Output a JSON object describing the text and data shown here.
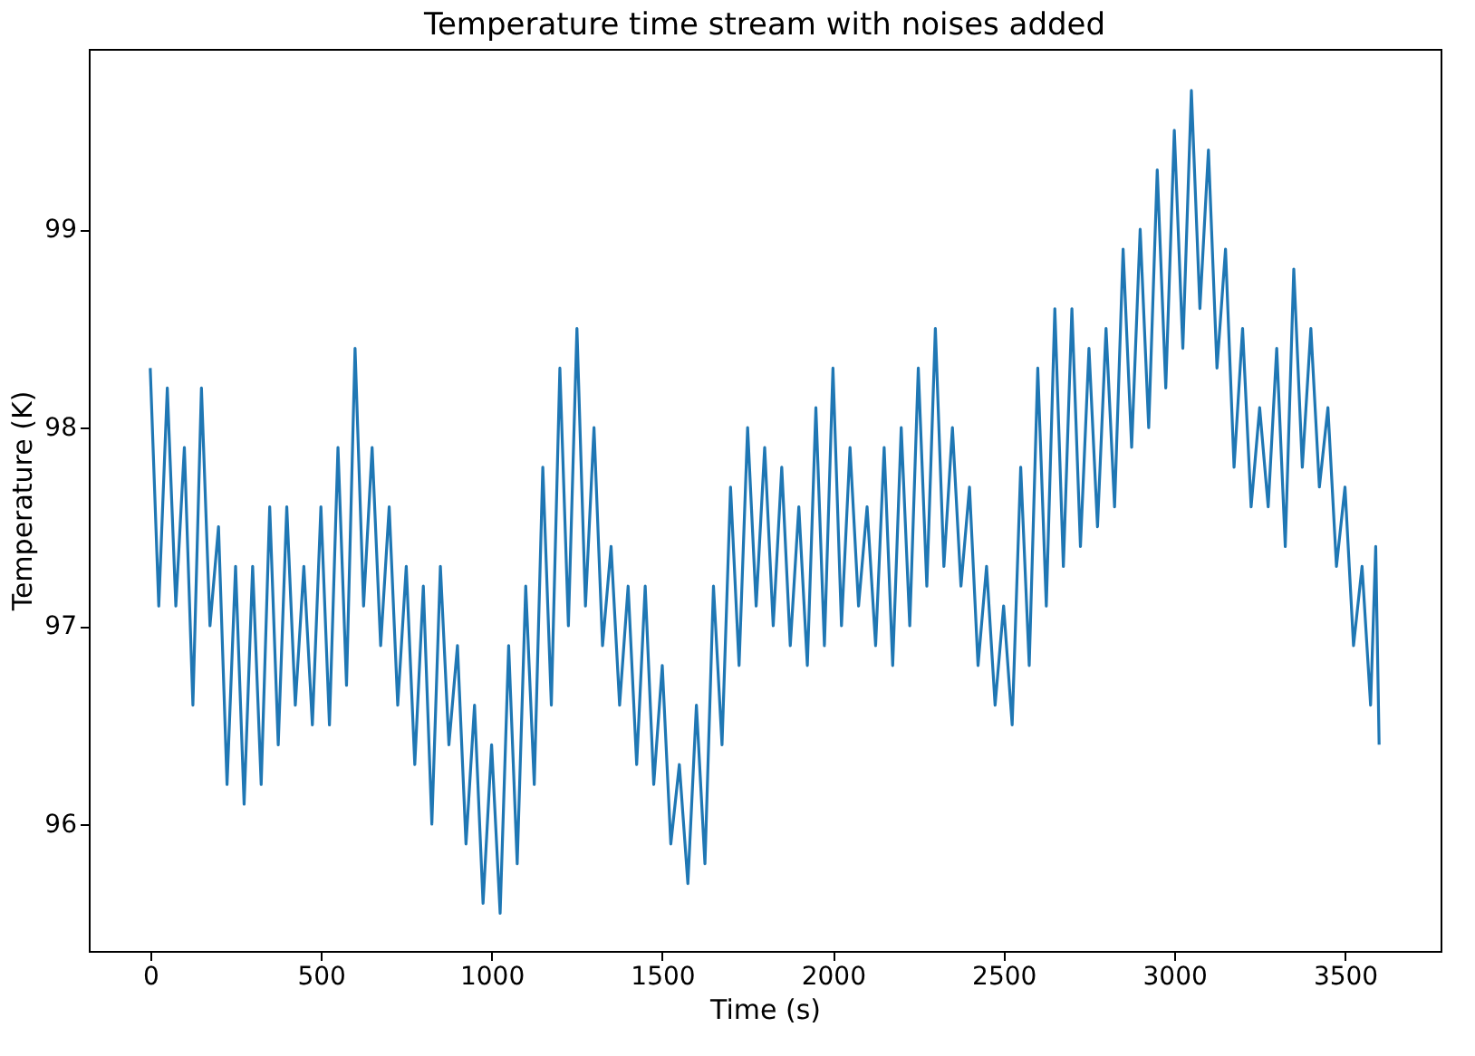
{
  "chart_data": {
    "type": "line",
    "title": "Temperature time stream with noises added",
    "xlabel": "Time (s)",
    "ylabel": "Temperature (K)",
    "x": [
      0,
      25,
      50,
      75,
      100,
      125,
      150,
      175,
      200,
      225,
      250,
      275,
      300,
      325,
      350,
      375,
      400,
      425,
      450,
      475,
      500,
      525,
      550,
      575,
      600,
      625,
      650,
      675,
      700,
      725,
      750,
      775,
      800,
      825,
      850,
      875,
      900,
      925,
      950,
      975,
      1000,
      1025,
      1050,
      1075,
      1100,
      1125,
      1150,
      1175,
      1200,
      1225,
      1250,
      1275,
      1300,
      1325,
      1350,
      1375,
      1400,
      1425,
      1450,
      1475,
      1500,
      1525,
      1550,
      1575,
      1600,
      1625,
      1650,
      1675,
      1700,
      1725,
      1750,
      1775,
      1800,
      1825,
      1850,
      1875,
      1900,
      1925,
      1950,
      1975,
      2000,
      2025,
      2050,
      2075,
      2100,
      2125,
      2150,
      2175,
      2200,
      2225,
      2250,
      2275,
      2300,
      2325,
      2350,
      2375,
      2400,
      2425,
      2450,
      2475,
      2500,
      2525,
      2550,
      2575,
      2600,
      2625,
      2650,
      2675,
      2700,
      2725,
      2750,
      2775,
      2800,
      2825,
      2850,
      2875,
      2900,
      2925,
      2950,
      2975,
      3000,
      3025,
      3050,
      3075,
      3100,
      3125,
      3150,
      3175,
      3200,
      3225,
      3250,
      3275,
      3300,
      3325,
      3350,
      3375,
      3400,
      3425,
      3450,
      3475,
      3500,
      3525,
      3550,
      3575,
      3590,
      3600
    ],
    "values": [
      98.3,
      97.1,
      98.2,
      97.1,
      97.9,
      96.6,
      98.2,
      97.0,
      97.5,
      96.2,
      97.3,
      96.1,
      97.3,
      96.2,
      97.6,
      96.4,
      97.6,
      96.6,
      97.3,
      96.5,
      97.6,
      96.5,
      97.9,
      96.7,
      98.4,
      97.1,
      97.9,
      96.9,
      97.6,
      96.6,
      97.3,
      96.3,
      97.2,
      96.0,
      97.3,
      96.4,
      96.9,
      95.9,
      96.6,
      95.6,
      96.4,
      95.55,
      96.9,
      95.8,
      97.2,
      96.2,
      97.8,
      96.6,
      98.3,
      97.0,
      98.5,
      97.1,
      98.0,
      96.9,
      97.4,
      96.6,
      97.2,
      96.3,
      97.2,
      96.2,
      96.8,
      95.9,
      96.3,
      95.7,
      96.6,
      95.8,
      97.2,
      96.4,
      97.7,
      96.8,
      98.0,
      97.1,
      97.9,
      97.0,
      97.8,
      96.9,
      97.6,
      96.8,
      98.1,
      96.9,
      98.3,
      97.0,
      97.9,
      97.1,
      97.6,
      96.9,
      97.9,
      96.8,
      98.0,
      97.0,
      98.3,
      97.2,
      98.5,
      97.3,
      98.0,
      97.2,
      97.7,
      96.8,
      97.3,
      96.6,
      97.1,
      96.5,
      97.8,
      96.8,
      98.3,
      97.1,
      98.6,
      97.3,
      98.6,
      97.4,
      98.4,
      97.5,
      98.5,
      97.6,
      98.9,
      97.9,
      99.0,
      98.0,
      99.3,
      98.2,
      99.5,
      98.4,
      99.7,
      98.6,
      99.4,
      98.3,
      98.9,
      97.8,
      98.5,
      97.6,
      98.1,
      97.6,
      98.4,
      97.4,
      98.8,
      97.8,
      98.5,
      97.7,
      98.1,
      97.3,
      97.7,
      96.9,
      97.3,
      96.6,
      97.4,
      96.4
    ],
    "color": "#1f77b4",
    "xlim": [
      -180,
      3780
    ],
    "ylim": [
      95.36,
      99.91
    ],
    "xticks": [
      0,
      500,
      1000,
      1500,
      2000,
      2500,
      3000,
      3500
    ],
    "yticks": [
      96,
      97,
      98,
      99
    ],
    "grid": false,
    "line_style": "solid",
    "marker": "none"
  }
}
